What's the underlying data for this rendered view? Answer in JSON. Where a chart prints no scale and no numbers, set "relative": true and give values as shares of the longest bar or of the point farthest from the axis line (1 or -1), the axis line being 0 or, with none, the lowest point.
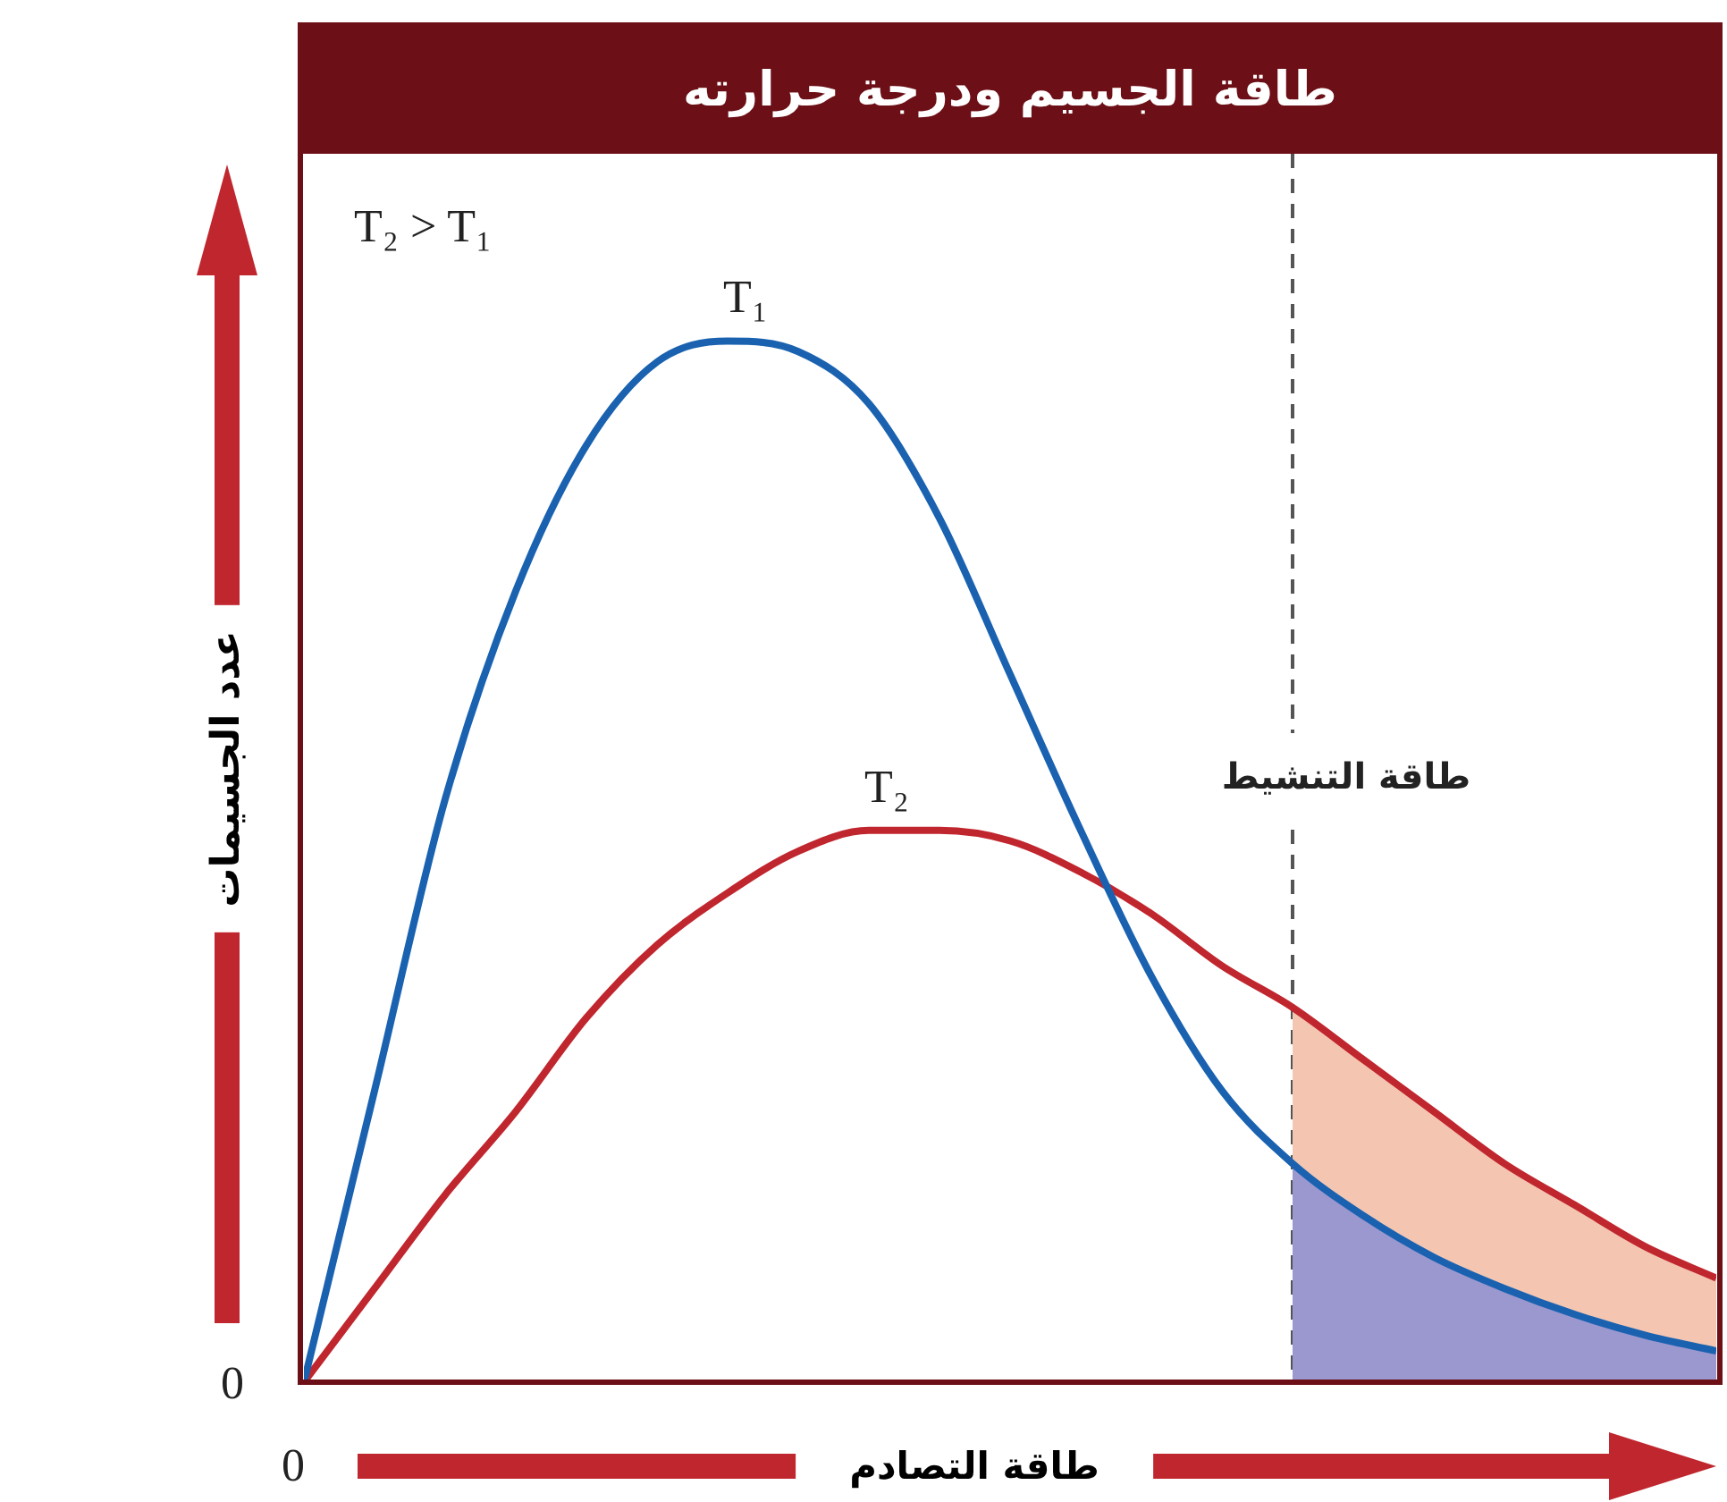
{
  "chart_data": {
    "type": "line",
    "title": "طاقة الجسيم ودرجة حرارته",
    "xlabel": "طاقة التصادم",
    "ylabel": "عدد الجسيمات",
    "relative": true,
    "legend": false,
    "marker": "none",
    "categories": [
      null,
      null,
      null,
      null,
      null,
      null,
      null,
      null,
      null,
      null,
      null,
      null,
      null,
      null,
      null,
      null,
      null,
      null,
      null,
      null,
      null
    ],
    "series": [
      {
        "name": "T₁",
        "color": "#1a62b0",
        "values": [
          0,
          0.28,
          0.56,
          0.76,
          0.9,
          0.98,
          1,
          0.99,
          0.94,
          0.83,
          0.68,
          0.53,
          0.39,
          0.28,
          0.21,
          0.16,
          0.12,
          0.09,
          0.065,
          0.045,
          0.03
        ]
      },
      {
        "name": "T₂",
        "color": "#c0262e",
        "values": [
          0,
          0.09,
          0.18,
          0.26,
          0.35,
          0.42,
          0.47,
          0.51,
          0.53,
          0.53,
          0.52,
          0.49,
          0.45,
          0.4,
          0.36,
          0.31,
          0.26,
          0.21,
          0.17,
          0.13,
          0.1
        ]
      },
      {
        "type": "area",
        "color": "#f4c6b2",
        "values": [
          null,
          null,
          null,
          null,
          null,
          null,
          null,
          null,
          null,
          null,
          null,
          null,
          null,
          null,
          0.36,
          0.31,
          0.26,
          0.21,
          0.17,
          0.13,
          0.1
        ]
      },
      {
        "type": "area",
        "color": "#9a98cf",
        "values": [
          null,
          null,
          null,
          null,
          null,
          null,
          null,
          null,
          null,
          null,
          null,
          null,
          null,
          null,
          0.21,
          0.16,
          0.12,
          0.09,
          0.065,
          0.045,
          0.03
        ]
      }
    ],
    "ref_lines": [
      {
        "axis": "x",
        "label": "طاقة التنشيط",
        "color": "#555555",
        "line_style": "dashed"
      }
    ],
    "annotations": [
      "T₂ > T₁",
      "0",
      "0"
    ]
  }
}
